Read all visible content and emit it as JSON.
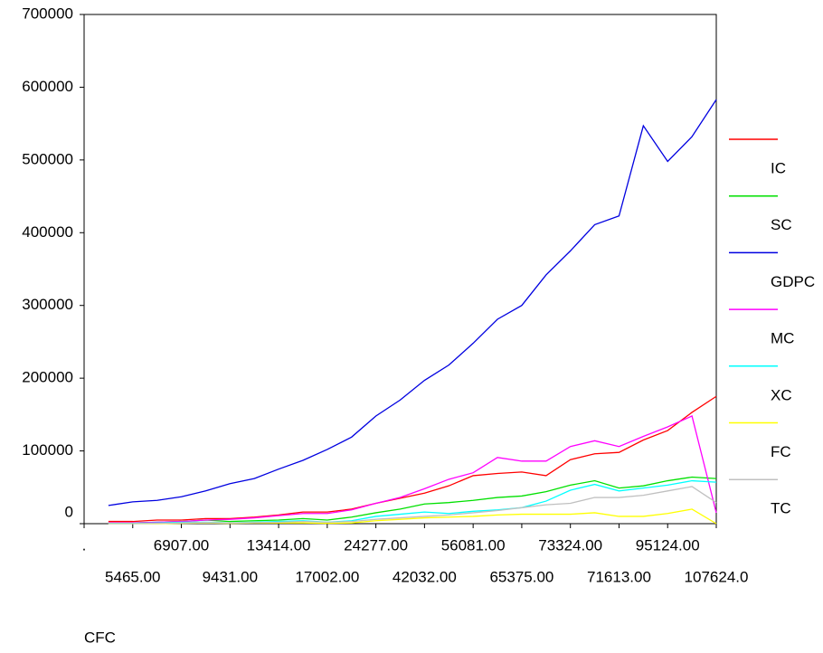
{
  "chart_data": {
    "type": "line",
    "x_label": "CFC",
    "categories": [
      ".",
      null,
      "5465.00",
      null,
      "6907.00",
      null,
      "9431.00",
      null,
      "13414.00",
      null,
      "17002.00",
      null,
      "24277.00",
      null,
      "42032.00",
      null,
      "56081.00",
      null,
      "65375.00",
      null,
      "73324.00",
      null,
      "71613.00",
      null,
      "95124.00",
      null,
      "107624.0"
    ],
    "ylim": [
      0,
      700000
    ],
    "yticks": [
      0,
      100000,
      200000,
      300000,
      400000,
      500000,
      600000,
      700000
    ],
    "series": [
      {
        "name": "IC",
        "color": "#ff0000",
        "values": [
          null,
          3000,
          3000,
          5000,
          5000,
          7000,
          7000,
          9000,
          12000,
          16000,
          16000,
          20000,
          28000,
          35000,
          42000,
          52000,
          66000,
          69000,
          71000,
          66000,
          88000,
          96000,
          98000,
          115000,
          128000,
          153000,
          175000
        ]
      },
      {
        "name": "SC",
        "color": "#00e000",
        "values": [
          null,
          1000,
          1000,
          2000,
          3000,
          5000,
          3000,
          4000,
          5000,
          7000,
          5000,
          9000,
          15000,
          20000,
          27000,
          29000,
          32000,
          36000,
          38000,
          44000,
          53000,
          59000,
          49000,
          52000,
          59000,
          64000,
          62000
        ]
      },
      {
        "name": "GDPC",
        "color": "#0000e0",
        "values": [
          null,
          25000,
          30000,
          32000,
          37000,
          45000,
          55000,
          62000,
          75000,
          87000,
          102000,
          119000,
          148000,
          170000,
          197000,
          218000,
          248000,
          281000,
          300000,
          342000,
          375000,
          411000,
          423000,
          547000,
          498000,
          532000,
          583000
        ]
      },
      {
        "name": "MC",
        "color": "#ff00ff",
        "values": [
          null,
          1000,
          1000,
          2000,
          3000,
          5000,
          6000,
          8000,
          11000,
          14000,
          14000,
          19000,
          28000,
          36000,
          48000,
          61000,
          70000,
          91000,
          86000,
          86000,
          106000,
          114000,
          106000,
          120000,
          133000,
          148000,
          15000
        ]
      },
      {
        "name": "XC",
        "color": "#00ffff",
        "values": [
          null,
          500,
          500,
          1000,
          2000,
          2000,
          1000,
          2000,
          3000,
          4000,
          2000,
          4000,
          10000,
          13000,
          16000,
          14000,
          17000,
          19000,
          22000,
          31000,
          46000,
          54000,
          45000,
          49000,
          53000,
          59000,
          57000
        ]
      },
      {
        "name": "FC",
        "color": "#ffff00",
        "values": [
          null,
          0,
          0,
          0,
          500,
          1000,
          500,
          1000,
          1000,
          1000,
          500,
          1000,
          4000,
          6000,
          8000,
          9000,
          10000,
          12000,
          13000,
          13000,
          13000,
          15000,
          10000,
          10000,
          14000,
          20000,
          0
        ]
      },
      {
        "name": "TC",
        "color": "#c0c0c0",
        "values": [
          null,
          0,
          0,
          500,
          1000,
          1500,
          1000,
          1500,
          2000,
          3000,
          2000,
          3000,
          6000,
          8000,
          10000,
          12000,
          15000,
          18000,
          22000,
          26000,
          28000,
          36000,
          36000,
          39000,
          45000,
          51000,
          29000
        ]
      }
    ]
  }
}
